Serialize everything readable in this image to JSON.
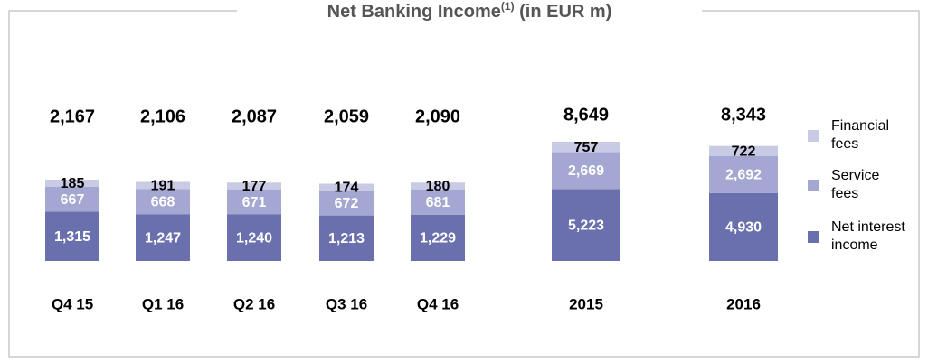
{
  "chart_data": [
    {
      "type": "bar",
      "stacked": true,
      "title": "Net Banking Income",
      "title_note": "(1)",
      "title_suffix": " (in EUR m)",
      "categories": [
        "Q4 15",
        "Q1 16",
        "Q2 16",
        "Q3 16",
        "Q4 16"
      ],
      "series": [
        {
          "name": "Net interest income",
          "color": "#6a6fae",
          "values": [
            1315,
            1247,
            1240,
            1213,
            1229
          ],
          "value_labels": [
            "1,315",
            "1,247",
            "1,240",
            "1,213",
            "1,229"
          ]
        },
        {
          "name": "Service fees",
          "color": "#a3a7d1",
          "values": [
            667,
            668,
            671,
            672,
            681
          ]
        },
        {
          "name": "Financial fees",
          "color": "#c9cbe5",
          "values": [
            185,
            191,
            177,
            174,
            180
          ]
        }
      ],
      "totals": [
        2167,
        2106,
        2087,
        2059,
        2090
      ],
      "total_labels": [
        "2,167",
        "2,106",
        "2,087",
        "2,059",
        "2,090"
      ]
    },
    {
      "type": "bar",
      "stacked": true,
      "categories": [
        "2015",
        "2016"
      ],
      "series": [
        {
          "name": "Net interest income",
          "color": "#6a6fae",
          "values": [
            5223,
            4930
          ],
          "value_labels": [
            "5,223",
            "4,930"
          ]
        },
        {
          "name": "Service fees",
          "color": "#a3a7d1",
          "values": [
            2669,
            2692
          ],
          "value_labels": [
            "2,669",
            "2,692"
          ]
        },
        {
          "name": "Financial fees",
          "color": "#c9cbe5",
          "values": [
            757,
            722
          ]
        }
      ],
      "totals": [
        8649,
        8343
      ],
      "total_labels": [
        "8,649",
        "8,343"
      ],
      "legend": [
        {
          "lines": [
            "Financial",
            "fees"
          ],
          "series": 2
        },
        {
          "lines": [
            "Service",
            "fees"
          ],
          "series": 1
        },
        {
          "lines": [
            "Net interest",
            "income"
          ],
          "series": 0
        }
      ]
    }
  ]
}
